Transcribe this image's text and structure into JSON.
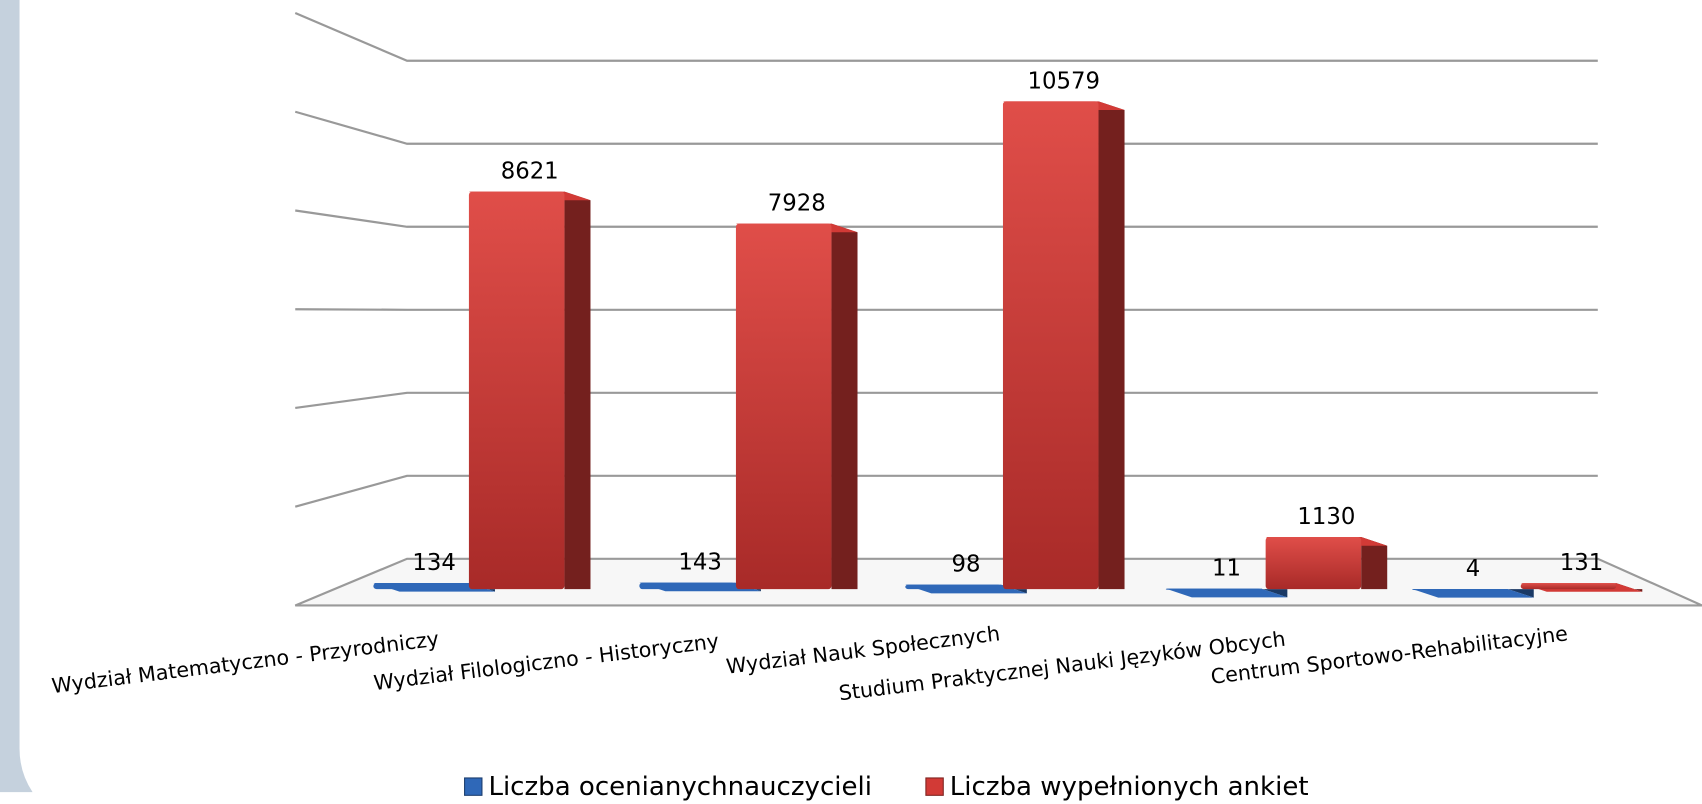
{
  "chart_data": {
    "type": "bar",
    "categories": [
      "Wydział Matematyczno - Przyrodniczy",
      "Wydział  Filologiczno - Historyczny",
      "Wydział Nauk Społecznych",
      "Studium Praktycznej Nauki Języków Obcych",
      "Centrum Sportowo-Rehabilitacyjne"
    ],
    "series": [
      {
        "name": "Liczba ocenianychnauczycieli",
        "color": "#2f68b8",
        "values": [
          134,
          143,
          98,
          11,
          4
        ]
      },
      {
        "name": "Liczba wypełnionych ankiet",
        "color": "#d23a36",
        "values": [
          8621,
          7928,
          10579,
          1130,
          131
        ]
      }
    ],
    "ylim": [
      0,
      12000
    ],
    "yticks": [
      0,
      2000,
      4000,
      6000,
      8000,
      10000,
      12000
    ],
    "grid": true,
    "legend": "bottom"
  }
}
